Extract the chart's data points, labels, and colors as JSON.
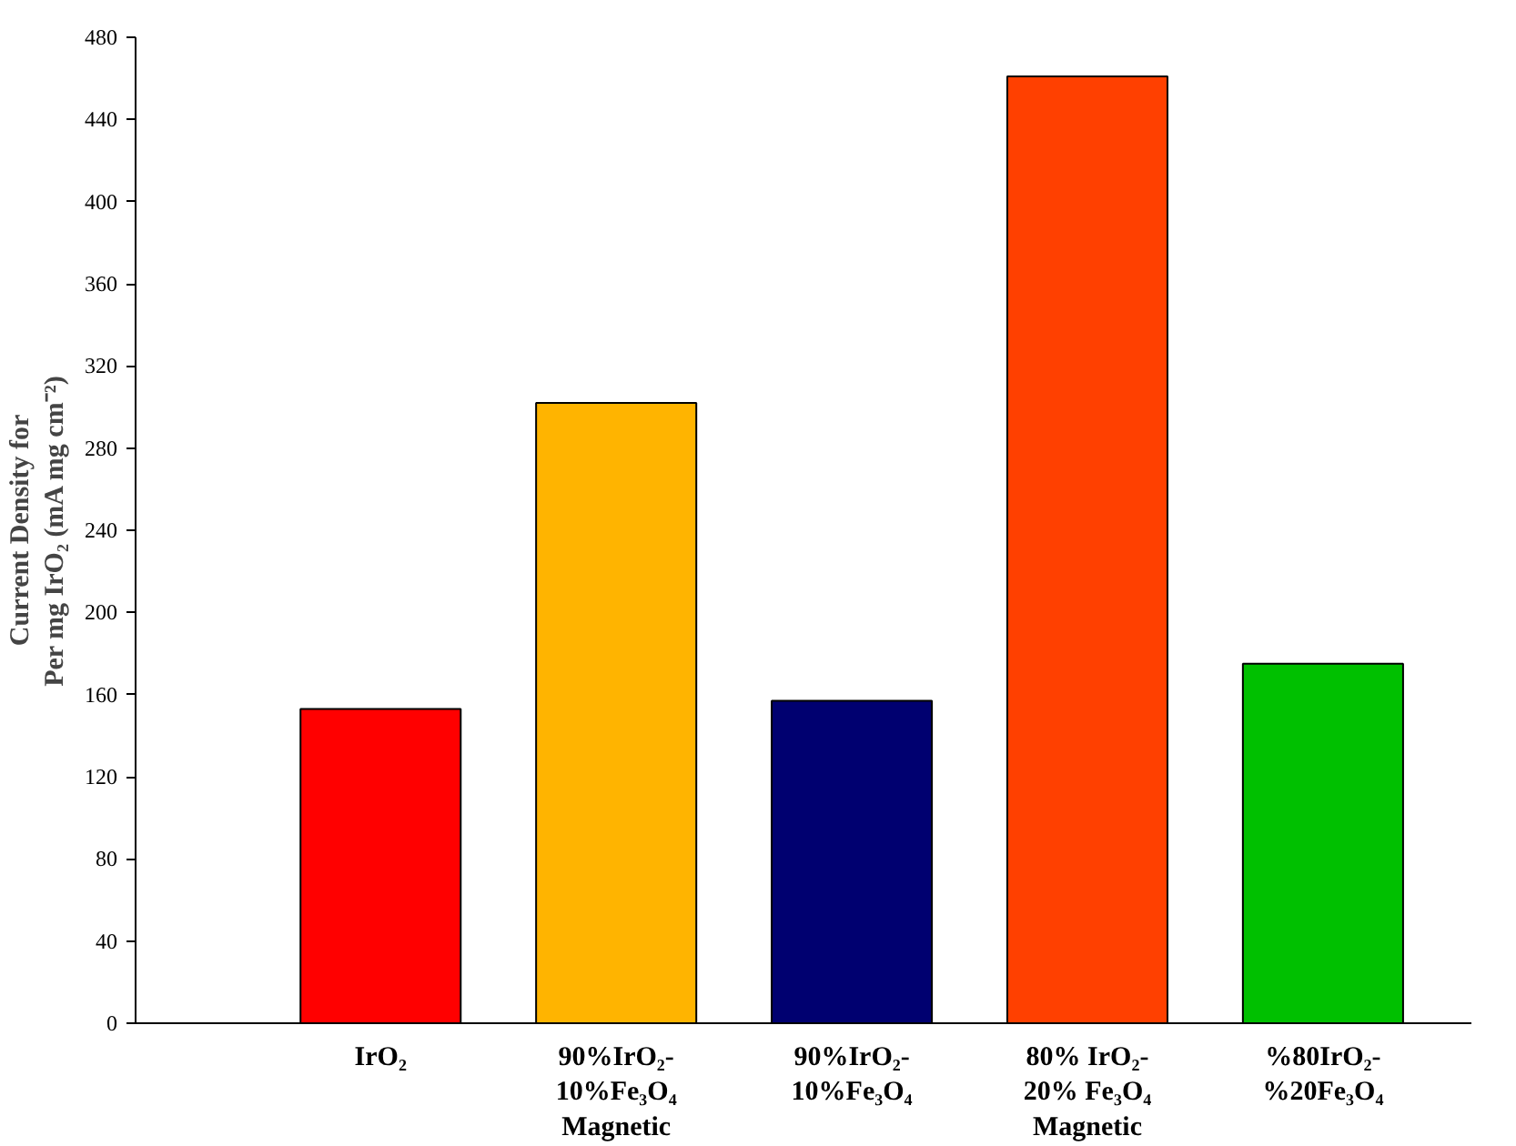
{
  "chart_data": {
    "type": "bar",
    "ylabel": "Current Density for\nPer mg IrO₂ (mA mg cm⁻²)",
    "categories": [
      "IrO₂",
      "90%IrO₂-\n10%Fe₃O₄\nMagnetic",
      "90%IrO₂-\n10%Fe₃O₄",
      "80% IrO₂-\n20% Fe₃O₄\nMagnetic",
      "%80IrO₂-\n%20Fe₃O₄"
    ],
    "values": [
      153,
      302,
      157,
      461,
      175
    ],
    "colors": [
      "#ff0000",
      "#ffb400",
      "#000070",
      "#ff4000",
      "#00c000"
    ],
    "ylim": [
      0,
      480
    ],
    "yticks": [
      0,
      40,
      80,
      120,
      160,
      200,
      240,
      280,
      320,
      360,
      400,
      440,
      480
    ],
    "grid": false
  }
}
